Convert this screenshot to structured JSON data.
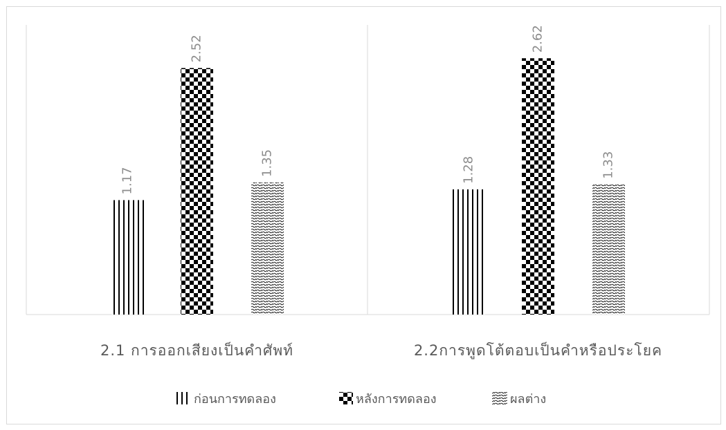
{
  "chart_data": {
    "type": "bar",
    "categories": [
      "2.1 การออกเสียงเป็นคำศัพท์",
      "2.2การพูดโต้ตอบเป็นคำหรือประโยค"
    ],
    "series": [
      {
        "name": "ก่อนการทดลอง",
        "values": [
          1.17,
          1.28
        ],
        "pattern": "vertical-lines"
      },
      {
        "name": "หลังการทดลอง",
        "values": [
          2.52,
          2.62
        ],
        "pattern": "checkerboard"
      },
      {
        "name": "ผลต่าง",
        "values": [
          1.35,
          1.33
        ],
        "pattern": "wave"
      }
    ],
    "data_labels": [
      [
        "1.17",
        "1.28"
      ],
      [
        "2.52",
        "2.62"
      ],
      [
        "1.35",
        "1.33"
      ]
    ],
    "ylim": [
      0,
      3
    ],
    "grid": false,
    "legend": "bottom",
    "colors": {
      "bar_ink": "#000000",
      "label": "#8c8c8c",
      "category": "#595959",
      "axis": "#d9d9d9"
    }
  }
}
